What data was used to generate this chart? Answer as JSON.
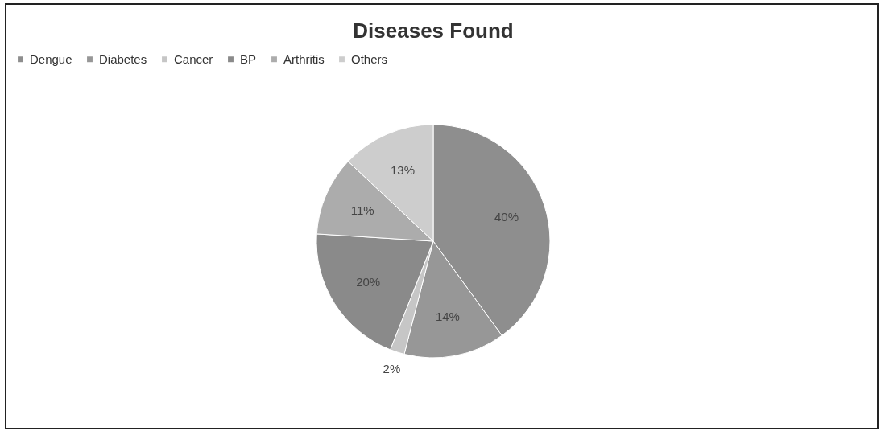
{
  "chart_data": {
    "type": "pie",
    "title": "Diseases Found",
    "categories": [
      "Dengue",
      "Diabetes",
      "Cancer",
      "BP",
      "Arthritis",
      "Others"
    ],
    "values": [
      40,
      14,
      2,
      20,
      11,
      13
    ],
    "value_labels": [
      "40%",
      "14%",
      "2%",
      "20%",
      "11%",
      "13%"
    ],
    "colors": [
      "#8e8e8e",
      "#979797",
      "#c6c6c6",
      "#8a8a8a",
      "#acacac",
      "#cdcdcd"
    ],
    "legend": "top"
  }
}
